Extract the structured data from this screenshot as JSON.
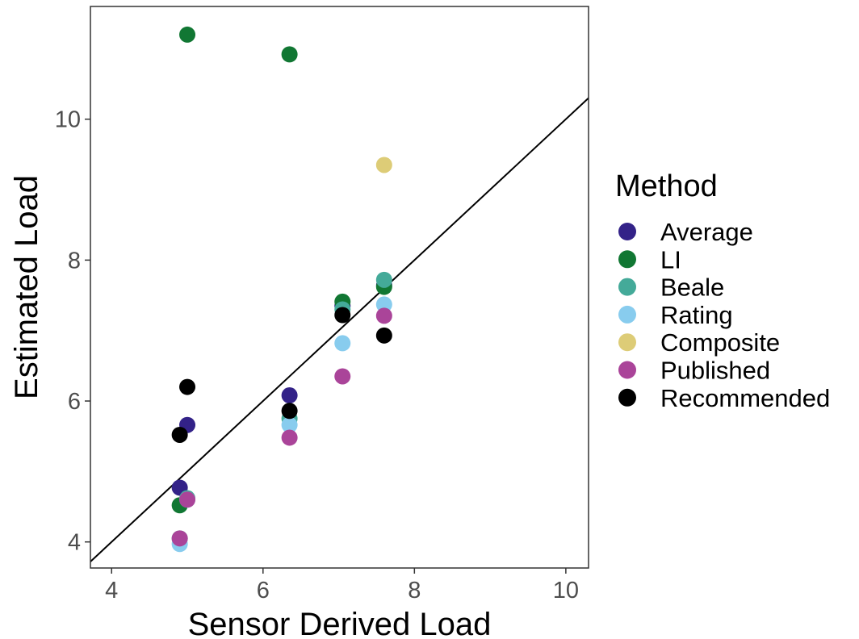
{
  "chart_data": {
    "type": "scatter",
    "xlabel": "Sensor Derived Load",
    "ylabel": "Estimated Load",
    "xlim": [
      3.72,
      10.3
    ],
    "ylim": [
      3.63,
      11.6
    ],
    "xticks": [
      4,
      6,
      8,
      10
    ],
    "yticks": [
      4,
      6,
      8,
      10
    ],
    "grid": false,
    "legend_title": "Method",
    "legend_position": "right",
    "reference_line": {
      "type": "1:1",
      "color": "#000000"
    },
    "series": [
      {
        "name": "Average",
        "color": "#332288",
        "points": [
          [
            4.9,
            4.77
          ],
          [
            5.0,
            5.66
          ],
          [
            6.35,
            6.08
          ],
          [
            7.05,
            7.35
          ],
          [
            7.6,
            7.64
          ]
        ]
      },
      {
        "name": "LI",
        "color": "#117733",
        "points": [
          [
            4.9,
            4.52
          ],
          [
            5.0,
            11.2
          ],
          [
            6.35,
            10.92
          ],
          [
            7.05,
            7.41
          ],
          [
            7.6,
            7.62
          ]
        ]
      },
      {
        "name": "Beale",
        "color": "#44AA99",
        "points": [
          [
            4.9,
            4.05
          ],
          [
            5.0,
            4.62
          ],
          [
            6.35,
            5.75
          ],
          [
            7.05,
            7.3
          ],
          [
            7.6,
            7.72
          ]
        ]
      },
      {
        "name": "Rating",
        "color": "#88CCEE",
        "points": [
          [
            4.9,
            3.97
          ],
          [
            5.0,
            4.6
          ],
          [
            6.35,
            5.66
          ],
          [
            7.05,
            6.82
          ],
          [
            7.6,
            7.37
          ]
        ]
      },
      {
        "name": "Composite",
        "color": "#DDCC77",
        "points": [
          [
            7.6,
            9.35
          ]
        ]
      },
      {
        "name": "Published",
        "color": "#AA4499",
        "points": [
          [
            4.9,
            4.05
          ],
          [
            5.0,
            4.6
          ],
          [
            6.35,
            5.48
          ],
          [
            7.05,
            6.35
          ],
          [
            7.6,
            7.21
          ]
        ]
      },
      {
        "name": "Recommended",
        "color": "#000000",
        "points": [
          [
            4.9,
            5.52
          ],
          [
            5.0,
            6.2
          ],
          [
            6.35,
            5.86
          ],
          [
            7.05,
            7.22
          ],
          [
            7.6,
            6.93
          ]
        ]
      }
    ]
  }
}
